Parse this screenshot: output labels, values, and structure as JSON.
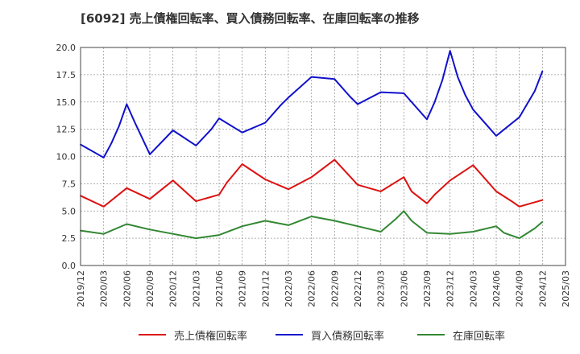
{
  "chart_data": {
    "type": "line",
    "title": "[6092]  売上債権回転率、買入債務回転率、在庫回転率の推移",
    "xlabel": "",
    "ylabel": "",
    "ylim": [
      0,
      20
    ],
    "yticks": [
      "0.0",
      "2.5",
      "5.0",
      "7.5",
      "10.0",
      "12.5",
      "15.0",
      "17.5",
      "20.0"
    ],
    "x_tick_labels": [
      "2019/12",
      "2020/03",
      "2020/06",
      "2020/09",
      "2020/12",
      "2021/03",
      "2021/06",
      "2021/09",
      "2021/12",
      "2022/03",
      "2022/06",
      "2022/09",
      "2022/12",
      "2023/03",
      "2023/06",
      "2023/09",
      "2023/12",
      "2024/03",
      "2024/06",
      "2024/09",
      "2024/12",
      "2025/03"
    ],
    "grid": true,
    "legend_position": "bottom",
    "series": [
      {
        "name": "売上債権回転率",
        "color": "#dd1111",
        "x": [
          "2019/12",
          "2020/03",
          "2020/06",
          "2020/09",
          "2020/12",
          "2021/03",
          "2021/06",
          "2021/07",
          "2021/09",
          "2021/12",
          "2022/03",
          "2022/06",
          "2022/09",
          "2022/12",
          "2023/03",
          "2023/06",
          "2023/07",
          "2023/09",
          "2023/10",
          "2023/12",
          "2024/03",
          "2024/06",
          "2024/08",
          "2024/09",
          "2024/12"
        ],
        "values": [
          6.4,
          5.4,
          7.1,
          6.1,
          7.8,
          5.9,
          6.5,
          7.6,
          9.3,
          7.9,
          7.0,
          8.1,
          9.7,
          7.4,
          6.8,
          8.1,
          6.8,
          5.7,
          6.5,
          7.8,
          9.2,
          6.8,
          5.9,
          5.4,
          6.0
        ]
      },
      {
        "name": "買入債務回転率",
        "color": "#1111cc",
        "x": [
          "2019/12",
          "2020/03",
          "2020/04",
          "2020/05",
          "2020/06",
          "2020/07",
          "2020/09",
          "2020/12",
          "2021/03",
          "2021/05",
          "2021/06",
          "2021/09",
          "2021/12",
          "2022/02",
          "2022/03",
          "2022/06",
          "2022/09",
          "2022/11",
          "2022/12",
          "2023/03",
          "2023/06",
          "2023/09",
          "2023/10",
          "2023/11",
          "2023/12",
          "2024/01",
          "2024/02",
          "2024/03",
          "2024/06",
          "2024/09",
          "2024/11",
          "2024/12"
        ],
        "values": [
          11.1,
          9.9,
          11.2,
          12.8,
          14.8,
          13.2,
          10.2,
          12.4,
          11.0,
          12.5,
          13.5,
          12.2,
          13.1,
          14.7,
          15.4,
          17.3,
          17.1,
          15.5,
          14.8,
          15.9,
          15.8,
          13.4,
          15.0,
          17.0,
          19.7,
          17.3,
          15.6,
          14.3,
          11.9,
          13.6,
          16.0,
          17.8
        ]
      },
      {
        "name": "在庫回転率",
        "color": "#338833",
        "x": [
          "2019/12",
          "2020/03",
          "2020/06",
          "2020/09",
          "2020/12",
          "2021/03",
          "2021/06",
          "2021/09",
          "2021/12",
          "2022/03",
          "2022/06",
          "2022/09",
          "2022/12",
          "2023/03",
          "2023/05",
          "2023/06",
          "2023/07",
          "2023/09",
          "2023/12",
          "2024/03",
          "2024/06",
          "2024/07",
          "2024/09",
          "2024/11",
          "2024/12"
        ],
        "values": [
          3.2,
          2.9,
          3.8,
          3.3,
          2.9,
          2.5,
          2.8,
          3.6,
          4.1,
          3.7,
          4.5,
          4.1,
          3.6,
          3.1,
          4.3,
          5.0,
          4.1,
          3.0,
          2.9,
          3.1,
          3.6,
          3.0,
          2.5,
          3.4,
          4.0
        ]
      }
    ]
  }
}
